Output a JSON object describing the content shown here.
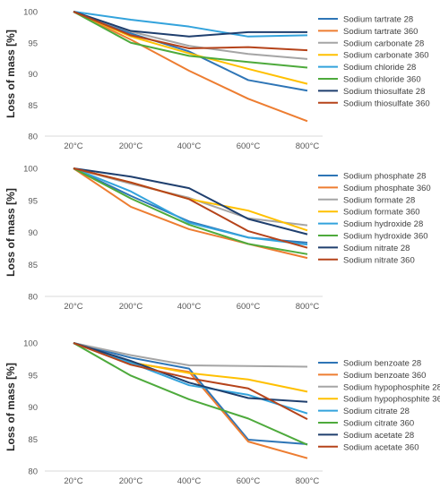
{
  "chart_data": [
    {
      "type": "line",
      "title": "",
      "xlabel": "",
      "ylabel": "Loss of mass [%]",
      "categories": [
        "20°C",
        "200°C",
        "400°C",
        "600°C",
        "800°C"
      ],
      "ylim": [
        80,
        100
      ],
      "yticks": [
        80,
        85,
        90,
        95,
        100
      ],
      "grid": false,
      "legend_position": "right",
      "series": [
        {
          "name": "Sodium tartrate 28",
          "color": "#2E75B6",
          "values": [
            100,
            96.5,
            93.6,
            89.0,
            87.3
          ]
        },
        {
          "name": "Sodium tartrate 360",
          "color": "#ED7D31",
          "values": [
            100,
            95.5,
            90.5,
            86.0,
            82.4
          ]
        },
        {
          "name": "Sodium carbonate 28",
          "color": "#A5A5A5",
          "values": [
            100,
            96.8,
            94.5,
            93.2,
            92.4
          ]
        },
        {
          "name": "Sodium carbonate 360",
          "color": "#FFC000",
          "values": [
            100,
            96.0,
            93.3,
            90.8,
            88.4
          ]
        },
        {
          "name": "Sodium chloride 28",
          "color": "#33A3DC",
          "values": [
            100,
            98.7,
            97.6,
            96.0,
            96.2
          ]
        },
        {
          "name": "Sodium chloride 360",
          "color": "#4EAA3C",
          "values": [
            100,
            95.0,
            92.9,
            91.9,
            91.0
          ]
        },
        {
          "name": "Sodium thiosulfate 28",
          "color": "#1F3F6E",
          "values": [
            100,
            96.9,
            96.0,
            96.7,
            96.7
          ]
        },
        {
          "name": "Sodium thiosulfate 360",
          "color": "#B5431A",
          "values": [
            100,
            96.2,
            94.1,
            94.3,
            93.8
          ]
        }
      ]
    },
    {
      "type": "line",
      "title": "",
      "xlabel": "",
      "ylabel": "Loss of mass [%]",
      "categories": [
        "20°C",
        "200°C",
        "400°C",
        "600°C",
        "800°C"
      ],
      "ylim": [
        80,
        100
      ],
      "yticks": [
        80,
        85,
        90,
        95,
        100
      ],
      "grid": false,
      "legend_position": "right",
      "series": [
        {
          "name": "Sodium phosphate 28",
          "color": "#2E75B6",
          "values": [
            100,
            95.7,
            91.7,
            89.2,
            88.4
          ]
        },
        {
          "name": "Sodium phosphate 360",
          "color": "#ED7D31",
          "values": [
            100,
            94.0,
            90.5,
            88.2,
            86.0
          ]
        },
        {
          "name": "Sodium formate 28",
          "color": "#A5A5A5",
          "values": [
            100,
            97.6,
            95.4,
            92.2,
            91.1
          ]
        },
        {
          "name": "Sodium formate 360",
          "color": "#FFC000",
          "values": [
            100,
            97.8,
            95.2,
            93.4,
            90.3
          ]
        },
        {
          "name": "Sodium hydroxide 28",
          "color": "#33A3DC",
          "values": [
            100,
            96.4,
            91.5,
            89.2,
            88.1
          ]
        },
        {
          "name": "Sodium hydroxide 360",
          "color": "#4EAA3C",
          "values": [
            100,
            95.3,
            91.2,
            88.2,
            86.6
          ]
        },
        {
          "name": "Sodium nitrate 28",
          "color": "#1F3F6E",
          "values": [
            100,
            98.7,
            96.9,
            92.1,
            89.7
          ]
        },
        {
          "name": "Sodium nitrate 360",
          "color": "#B5431A",
          "values": [
            100,
            97.8,
            95.2,
            90.2,
            87.6
          ]
        }
      ]
    },
    {
      "type": "line",
      "title": "",
      "xlabel": "",
      "ylabel": "Loss of mass [%]",
      "categories": [
        "20°C",
        "200°C",
        "400°C",
        "600°C",
        "800°C"
      ],
      "ylim": [
        80,
        100
      ],
      "yticks": [
        80,
        85,
        90,
        95,
        100
      ],
      "grid": false,
      "legend_position": "right",
      "series": [
        {
          "name": "Sodium benzoate 28",
          "color": "#2E75B6",
          "values": [
            100,
            97.7,
            96.0,
            84.9,
            84.2
          ]
        },
        {
          "name": "Sodium benzoate 360",
          "color": "#ED7D31",
          "values": [
            100,
            96.9,
            95.5,
            84.6,
            82.0
          ]
        },
        {
          "name": "Sodium hypophosphite 28",
          "color": "#A5A5A5",
          "values": [
            100,
            98.1,
            96.5,
            96.4,
            96.3
          ]
        },
        {
          "name": "Sodium hypophosphite 360",
          "color": "#FFC000",
          "values": [
            100,
            97.0,
            95.3,
            94.3,
            92.4
          ]
        },
        {
          "name": "Sodium citrate 28",
          "color": "#33A3DC",
          "values": [
            100,
            96.9,
            93.4,
            91.9,
            89.0
          ]
        },
        {
          "name": "Sodium citrate 360",
          "color": "#4EAA3C",
          "values": [
            100,
            94.9,
            91.2,
            88.2,
            84.1
          ]
        },
        {
          "name": "Sodium acetate 28",
          "color": "#1F3F6E",
          "values": [
            100,
            97.2,
            93.8,
            91.4,
            90.8
          ]
        },
        {
          "name": "Sodium acetate 360",
          "color": "#B5431A",
          "values": [
            100,
            96.6,
            94.5,
            92.9,
            88.1
          ]
        }
      ]
    }
  ]
}
